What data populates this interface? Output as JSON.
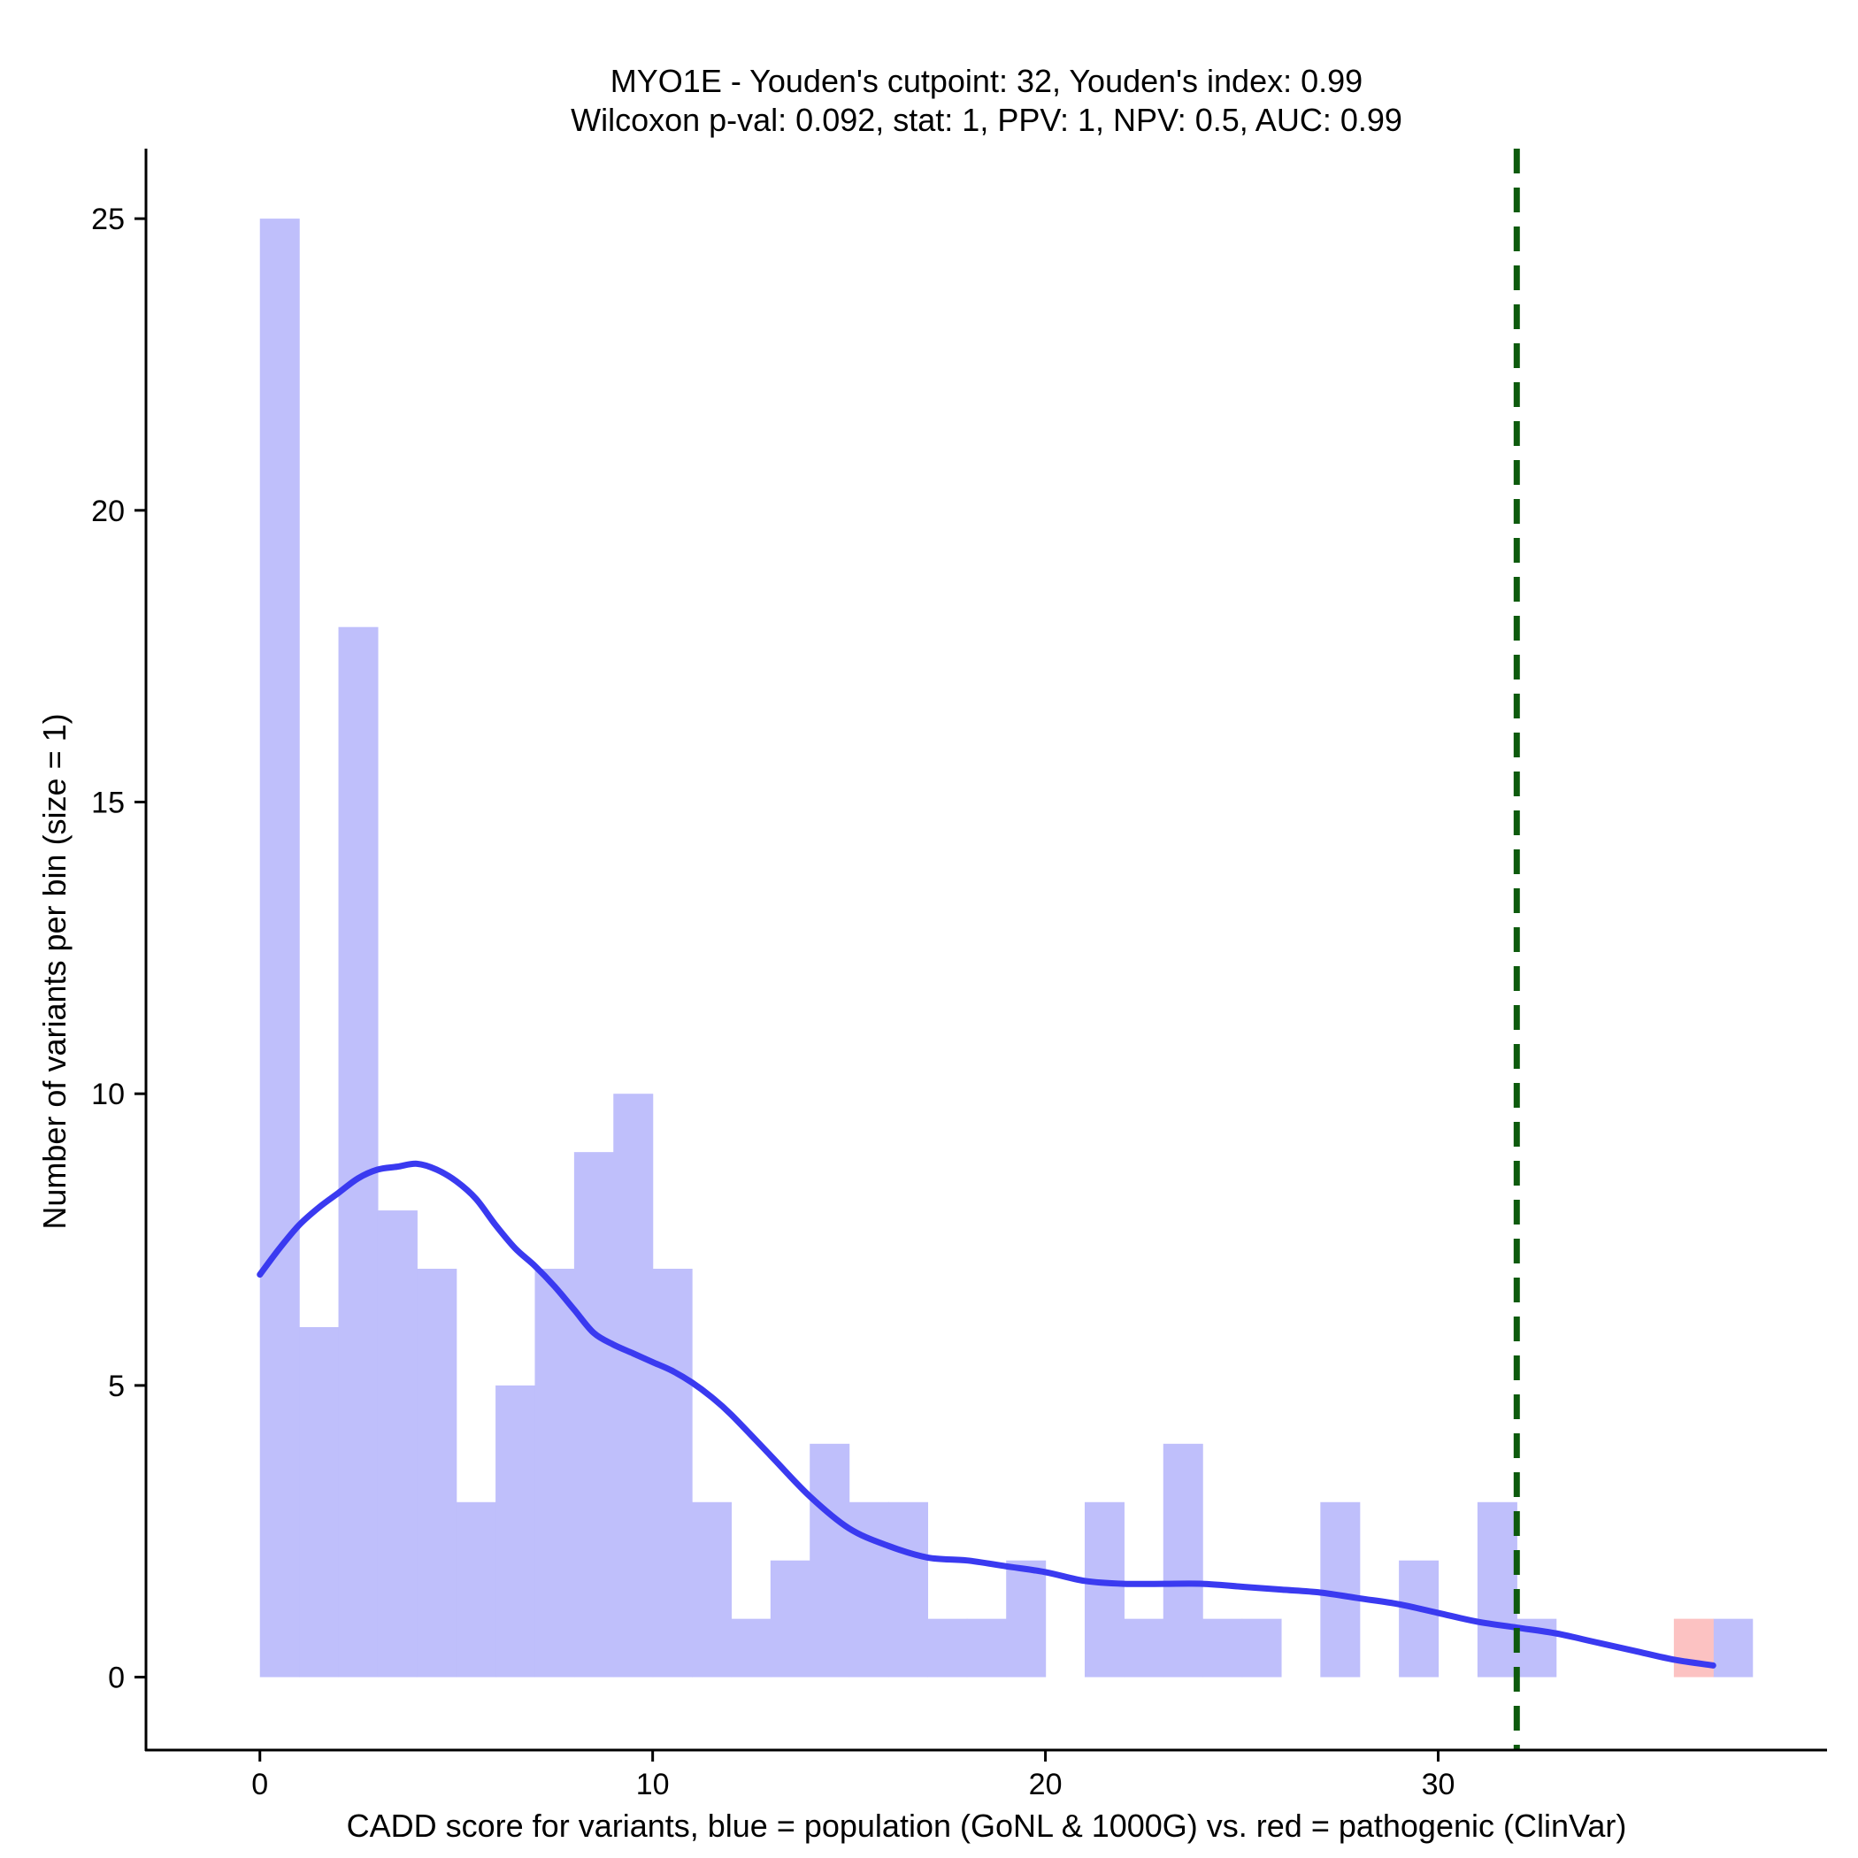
{
  "chart_data": {
    "type": "bar",
    "title": "MYO1E - Youden's cutpoint: 32, Youden's index: 0.99",
    "subtitle": "Wilcoxon p-val: 0.092, stat: 1, PPV: 1, NPV: 0.5, AUC: 0.99",
    "xlabel": "CADD score for variants, blue = population (GoNL & 1000G) vs. red = pathogenic (ClinVar)",
    "ylabel": "Number of variants per bin (size = 1)",
    "xlim": [
      -2.9,
      39.9
    ],
    "ylim": [
      -1.25,
      26.2
    ],
    "x_ticks": [
      0,
      10,
      20,
      30
    ],
    "y_ticks": [
      0,
      5,
      10,
      15,
      20,
      25
    ],
    "bin_size": 1,
    "colors": {
      "population": "#bfbffb",
      "pathogenic": "#fcc2c2",
      "density": "#3a3af0",
      "cutpoint": "#0d5a0d"
    },
    "series": [
      {
        "name": "population",
        "bins": [
          {
            "x0": 0,
            "count": 25
          },
          {
            "x0": 1,
            "count": 6
          },
          {
            "x0": 2,
            "count": 18
          },
          {
            "x0": 3,
            "count": 8
          },
          {
            "x0": 4,
            "count": 7
          },
          {
            "x0": 5,
            "count": 3
          },
          {
            "x0": 6,
            "count": 5
          },
          {
            "x0": 7,
            "count": 7
          },
          {
            "x0": 8,
            "count": 9
          },
          {
            "x0": 9,
            "count": 10
          },
          {
            "x0": 10,
            "count": 7
          },
          {
            "x0": 11,
            "count": 3
          },
          {
            "x0": 12,
            "count": 1
          },
          {
            "x0": 13,
            "count": 2
          },
          {
            "x0": 14,
            "count": 4
          },
          {
            "x0": 15,
            "count": 3
          },
          {
            "x0": 16,
            "count": 3
          },
          {
            "x0": 17,
            "count": 1
          },
          {
            "x0": 18,
            "count": 1
          },
          {
            "x0": 19,
            "count": 2
          },
          {
            "x0": 20,
            "count": 0
          },
          {
            "x0": 21,
            "count": 3
          },
          {
            "x0": 22,
            "count": 1
          },
          {
            "x0": 23,
            "count": 4
          },
          {
            "x0": 24,
            "count": 1
          },
          {
            "x0": 25,
            "count": 1
          },
          {
            "x0": 26,
            "count": 0
          },
          {
            "x0": 27,
            "count": 3
          },
          {
            "x0": 28,
            "count": 0
          },
          {
            "x0": 29,
            "count": 2
          },
          {
            "x0": 30,
            "count": 0
          },
          {
            "x0": 31,
            "count": 3
          },
          {
            "x0": 32,
            "count": 1
          },
          {
            "x0": 33,
            "count": 0
          },
          {
            "x0": 34,
            "count": 0
          },
          {
            "x0": 35,
            "count": 0
          },
          {
            "x0": 36,
            "count": 0
          },
          {
            "x0": 37,
            "count": 1
          }
        ]
      },
      {
        "name": "pathogenic",
        "bins": [
          {
            "x0": 36,
            "count": 1
          }
        ]
      }
    ],
    "density_curve": {
      "x": [
        0,
        0.5,
        1,
        1.5,
        2,
        2.5,
        3,
        3.5,
        4,
        4.5,
        5,
        5.5,
        6,
        6.5,
        7,
        7.5,
        8,
        8.5,
        9,
        9.5,
        10,
        10.5,
        11,
        11.5,
        12,
        13,
        14,
        15,
        16,
        17,
        18,
        19,
        20,
        21,
        22,
        23,
        24,
        25,
        26,
        27,
        28,
        29,
        30,
        31,
        32,
        33,
        34,
        35,
        36,
        37
      ],
      "y": [
        6.9,
        7.35,
        7.75,
        8.05,
        8.3,
        8.55,
        8.7,
        8.75,
        8.8,
        8.7,
        8.5,
        8.2,
        7.75,
        7.35,
        7.05,
        6.7,
        6.3,
        5.9,
        5.7,
        5.55,
        5.4,
        5.25,
        5.05,
        4.8,
        4.5,
        3.8,
        3.1,
        2.55,
        2.25,
        2.05,
        2.0,
        1.9,
        1.8,
        1.65,
        1.6,
        1.6,
        1.6,
        1.55,
        1.5,
        1.45,
        1.35,
        1.25,
        1.1,
        0.95,
        0.85,
        0.75,
        0.6,
        0.45,
        0.3,
        0.2
      ]
    },
    "cutpoint": 32,
    "legend": "none",
    "grid": false
  }
}
